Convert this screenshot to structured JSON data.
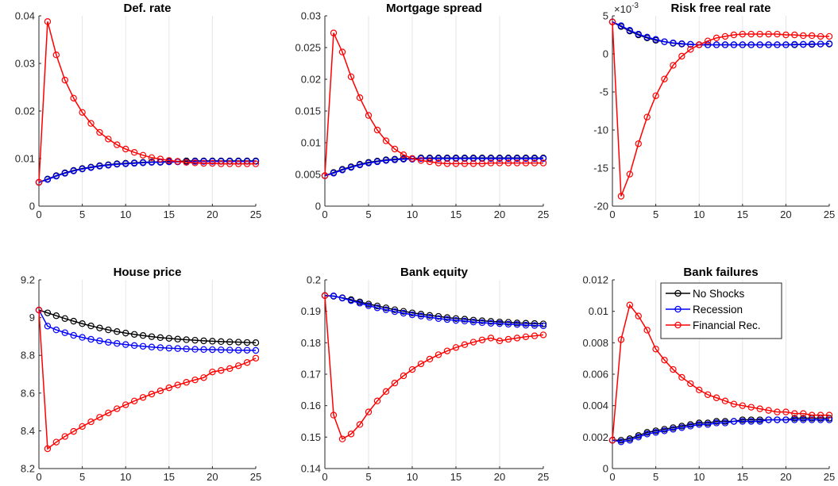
{
  "figure": {
    "legend": {
      "panel_index": 5,
      "placement": "top-right",
      "entries": [
        {
          "label": "No Shocks",
          "color": "#000000"
        },
        {
          "label": "Recession",
          "color": "#0000ff"
        },
        {
          "label": "Financial Rec.",
          "color": "#ff0000"
        }
      ]
    }
  },
  "chart_data": [
    {
      "type": "line",
      "title": "Def. rate",
      "xlabel": "",
      "ylabel": "",
      "xlim": [
        0,
        25
      ],
      "ylim": [
        0,
        0.04
      ],
      "xticks": [
        0,
        5,
        10,
        15,
        20,
        25
      ],
      "xtick_labels": [
        "0",
        "5",
        "10",
        "15",
        "20",
        "25"
      ],
      "yticks": [
        0,
        0.01,
        0.02,
        0.03,
        0.04
      ],
      "ytick_labels": [
        "0",
        "0.01",
        "0.02",
        "0.03",
        "0.04"
      ],
      "exponent_label": "",
      "grid": "vertical",
      "x": [
        0,
        1,
        2,
        3,
        4,
        5,
        6,
        7,
        8,
        9,
        10,
        11,
        12,
        13,
        14,
        15,
        16,
        17,
        18,
        19,
        20,
        21,
        22,
        23,
        24,
        25
      ],
      "series": [
        {
          "name": "No Shocks",
          "color": "#000000",
          "values": [
            0.005,
            0.0057,
            0.0064,
            0.007,
            0.0075,
            0.0079,
            0.0082,
            0.0085,
            0.0087,
            0.0089,
            0.009,
            0.0091,
            0.0092,
            0.0093,
            0.0093,
            0.0094,
            0.0094,
            0.0095,
            0.0095,
            0.0095,
            0.0095,
            0.0095,
            0.0095,
            0.0095,
            0.0095,
            0.0095
          ]
        },
        {
          "name": "Recession",
          "color": "#0000ff",
          "values": [
            0.005,
            0.0056,
            0.0063,
            0.0069,
            0.0074,
            0.0078,
            0.0081,
            0.0084,
            0.0086,
            0.0088,
            0.0089,
            0.009,
            0.0091,
            0.0092,
            0.0092,
            0.0093,
            0.0093,
            0.0093,
            0.0094,
            0.0094,
            0.0094,
            0.0094,
            0.0094,
            0.0094,
            0.0094,
            0.0094
          ]
        },
        {
          "name": "Financial Rec.",
          "color": "#ff0000",
          "values": [
            0.005,
            0.0388,
            0.0318,
            0.0265,
            0.0227,
            0.0197,
            0.0174,
            0.0155,
            0.0141,
            0.0129,
            0.012,
            0.0113,
            0.0107,
            0.0102,
            0.0099,
            0.0096,
            0.0094,
            0.0092,
            0.0091,
            0.009,
            0.009,
            0.0089,
            0.0089,
            0.0089,
            0.0089,
            0.0089
          ]
        }
      ]
    },
    {
      "type": "line",
      "title": "Mortgage spread",
      "xlabel": "",
      "ylabel": "",
      "xlim": [
        0,
        25
      ],
      "ylim": [
        0,
        0.03
      ],
      "xticks": [
        0,
        5,
        10,
        15,
        20,
        25
      ],
      "xtick_labels": [
        "0",
        "5",
        "10",
        "15",
        "20",
        "25"
      ],
      "yticks": [
        0,
        0.005,
        0.01,
        0.015,
        0.02,
        0.025,
        0.03
      ],
      "ytick_labels": [
        "0",
        "0.005",
        "0.01",
        "0.015",
        "0.02",
        "0.025",
        "0.03"
      ],
      "exponent_label": "",
      "grid": "vertical",
      "x": [
        0,
        1,
        2,
        3,
        4,
        5,
        6,
        7,
        8,
        9,
        10,
        11,
        12,
        13,
        14,
        15,
        16,
        17,
        18,
        19,
        20,
        21,
        22,
        23,
        24,
        25
      ],
      "series": [
        {
          "name": "No Shocks",
          "color": "#000000",
          "values": [
            0.0048,
            0.0053,
            0.0058,
            0.0062,
            0.0066,
            0.0069,
            0.0071,
            0.0073,
            0.0074,
            0.0075,
            0.0075,
            0.0076,
            0.0076,
            0.0076,
            0.0076,
            0.0076,
            0.0076,
            0.0076,
            0.0076,
            0.0076,
            0.0076,
            0.0076,
            0.0076,
            0.0076,
            0.0076,
            0.0076
          ]
        },
        {
          "name": "Recession",
          "color": "#0000ff",
          "values": [
            0.0048,
            0.0052,
            0.0057,
            0.0061,
            0.0065,
            0.0068,
            0.007,
            0.0072,
            0.0073,
            0.0074,
            0.0074,
            0.0075,
            0.0075,
            0.0075,
            0.0075,
            0.0075,
            0.0075,
            0.0075,
            0.0075,
            0.0075,
            0.0075,
            0.0075,
            0.0075,
            0.0075,
            0.0075,
            0.0075
          ]
        },
        {
          "name": "Financial Rec.",
          "color": "#ff0000",
          "values": [
            0.0048,
            0.0273,
            0.0243,
            0.0204,
            0.0171,
            0.0143,
            0.012,
            0.0103,
            0.009,
            0.0081,
            0.0075,
            0.0072,
            0.007,
            0.0068,
            0.0067,
            0.0067,
            0.0067,
            0.0067,
            0.0067,
            0.0068,
            0.0068,
            0.0068,
            0.0068,
            0.0068,
            0.0068,
            0.0068
          ]
        }
      ]
    },
    {
      "type": "line",
      "title": "Risk free real rate",
      "xlabel": "",
      "ylabel": "",
      "xlim": [
        0,
        25
      ],
      "ylim": [
        -20,
        5
      ],
      "xticks": [
        0,
        5,
        10,
        15,
        20,
        25
      ],
      "xtick_labels": [
        "0",
        "5",
        "10",
        "15",
        "20",
        "25"
      ],
      "yticks": [
        -20,
        -15,
        -10,
        -5,
        0,
        5
      ],
      "ytick_labels": [
        "-20",
        "-15",
        "-10",
        "-5",
        "0",
        "5"
      ],
      "exponent_label": "×10",
      "exponent_power": "-3",
      "grid": "vertical",
      "x": [
        0,
        1,
        2,
        3,
        4,
        5,
        6,
        7,
        8,
        9,
        10,
        11,
        12,
        13,
        14,
        15,
        16,
        17,
        18,
        19,
        20,
        21,
        22,
        23,
        24,
        25
      ],
      "series": [
        {
          "name": "No Shocks",
          "color": "#000000",
          "values": [
            4.2,
            3.6,
            3.0,
            2.5,
            2.1,
            1.8,
            1.6,
            1.4,
            1.3,
            1.25,
            1.2,
            1.2,
            1.2,
            1.2,
            1.2,
            1.2,
            1.2,
            1.2,
            1.2,
            1.2,
            1.2,
            1.2,
            1.25,
            1.25,
            1.3,
            1.3
          ]
        },
        {
          "name": "Recession",
          "color": "#0000ff",
          "values": [
            4.2,
            3.7,
            3.1,
            2.6,
            2.2,
            1.9,
            1.6,
            1.45,
            1.35,
            1.25,
            1.2,
            1.2,
            1.2,
            1.2,
            1.2,
            1.2,
            1.2,
            1.2,
            1.2,
            1.2,
            1.2,
            1.25,
            1.25,
            1.3,
            1.3,
            1.35
          ]
        },
        {
          "name": "Financial Rec.",
          "color": "#ff0000",
          "values": [
            4.2,
            -18.7,
            -15.8,
            -11.8,
            -8.3,
            -5.5,
            -3.3,
            -1.5,
            -0.3,
            0.6,
            1.2,
            1.7,
            2.1,
            2.3,
            2.5,
            2.6,
            2.6,
            2.6,
            2.6,
            2.6,
            2.5,
            2.5,
            2.4,
            2.4,
            2.3,
            2.3
          ]
        }
      ]
    },
    {
      "type": "line",
      "title": "House price",
      "xlabel": "",
      "ylabel": "",
      "xlim": [
        0,
        25
      ],
      "ylim": [
        8.2,
        9.2
      ],
      "xticks": [
        0,
        5,
        10,
        15,
        20,
        25
      ],
      "xtick_labels": [
        "0",
        "5",
        "10",
        "15",
        "20",
        "25"
      ],
      "yticks": [
        8.2,
        8.4,
        8.6,
        8.8,
        9,
        9.2
      ],
      "ytick_labels": [
        "8.2",
        "8.4",
        "8.6",
        "8.8",
        "9",
        "9.2"
      ],
      "exponent_label": "",
      "grid": "vertical",
      "x": [
        0,
        1,
        2,
        3,
        4,
        5,
        6,
        7,
        8,
        9,
        10,
        11,
        12,
        13,
        14,
        15,
        16,
        17,
        18,
        19,
        20,
        21,
        22,
        23,
        24,
        25
      ],
      "series": [
        {
          "name": "No Shocks",
          "color": "#000000",
          "values": [
            9.04,
            9.025,
            9.01,
            8.995,
            8.981,
            8.968,
            8.956,
            8.945,
            8.935,
            8.926,
            8.918,
            8.911,
            8.905,
            8.899,
            8.894,
            8.89,
            8.886,
            8.883,
            8.88,
            8.877,
            8.875,
            8.873,
            8.871,
            8.87,
            8.868,
            8.867
          ]
        },
        {
          "name": "Recession",
          "color": "#0000ff",
          "values": [
            9.04,
            8.955,
            8.935,
            8.92,
            8.906,
            8.895,
            8.885,
            8.877,
            8.869,
            8.863,
            8.857,
            8.852,
            8.848,
            8.844,
            8.841,
            8.838,
            8.836,
            8.834,
            8.832,
            8.831,
            8.83,
            8.829,
            8.828,
            8.827,
            8.827,
            8.826
          ]
        },
        {
          "name": "Financial Rec.",
          "color": "#ff0000",
          "values": [
            9.04,
            8.305,
            8.34,
            8.37,
            8.397,
            8.423,
            8.448,
            8.472,
            8.495,
            8.517,
            8.538,
            8.558,
            8.577,
            8.595,
            8.612,
            8.628,
            8.643,
            8.657,
            8.67,
            8.682,
            8.712,
            8.72,
            8.73,
            8.745,
            8.762,
            8.785
          ]
        }
      ]
    },
    {
      "type": "line",
      "title": "Bank equity",
      "xlabel": "",
      "ylabel": "",
      "xlim": [
        0,
        25
      ],
      "ylim": [
        0.14,
        0.2
      ],
      "xticks": [
        0,
        5,
        10,
        15,
        20,
        25
      ],
      "xtick_labels": [
        "0",
        "5",
        "10",
        "15",
        "20",
        "25"
      ],
      "yticks": [
        0.14,
        0.15,
        0.16,
        0.17,
        0.18,
        0.19,
        0.2
      ],
      "ytick_labels": [
        "0.14",
        "0.15",
        "0.16",
        "0.17",
        "0.18",
        "0.19",
        "0.2"
      ],
      "exponent_label": "",
      "grid": "vertical",
      "x": [
        0,
        1,
        2,
        3,
        4,
        5,
        6,
        7,
        8,
        9,
        10,
        11,
        12,
        13,
        14,
        15,
        16,
        17,
        18,
        19,
        20,
        21,
        22,
        23,
        24,
        25
      ],
      "series": [
        {
          "name": "No Shocks",
          "color": "#000000",
          "values": [
            0.195,
            0.1948,
            0.1943,
            0.1937,
            0.193,
            0.1923,
            0.1917,
            0.1911,
            0.1905,
            0.19,
            0.1895,
            0.1891,
            0.1887,
            0.1884,
            0.188,
            0.1877,
            0.1875,
            0.1872,
            0.187,
            0.1868,
            0.1866,
            0.1865,
            0.1863,
            0.1862,
            0.1861,
            0.186
          ]
        },
        {
          "name": "Recession",
          "color": "#0000ff",
          "values": [
            0.195,
            0.1949,
            0.1942,
            0.1934,
            0.1926,
            0.1918,
            0.1911,
            0.1905,
            0.1899,
            0.1894,
            0.1889,
            0.1885,
            0.1881,
            0.1877,
            0.1874,
            0.1871,
            0.1869,
            0.1866,
            0.1864,
            0.1862,
            0.1861,
            0.1859,
            0.1858,
            0.1856,
            0.1855,
            0.1854
          ]
        },
        {
          "name": "Financial Rec.",
          "color": "#ff0000",
          "values": [
            0.195,
            0.157,
            0.1494,
            0.151,
            0.154,
            0.158,
            0.1615,
            0.1645,
            0.1672,
            0.1695,
            0.1715,
            0.1733,
            0.1748,
            0.1762,
            0.1774,
            0.1785,
            0.1794,
            0.1802,
            0.1809,
            0.1815,
            0.1806,
            0.1811,
            0.1815,
            0.1819,
            0.1822,
            0.1825
          ]
        }
      ]
    },
    {
      "type": "line",
      "title": "Bank failures",
      "xlabel": "",
      "ylabel": "",
      "xlim": [
        0,
        25
      ],
      "ylim": [
        0,
        0.012
      ],
      "xticks": [
        0,
        5,
        10,
        15,
        20,
        25
      ],
      "xtick_labels": [
        "0",
        "5",
        "10",
        "15",
        "20",
        "25"
      ],
      "yticks": [
        0,
        0.002,
        0.004,
        0.006,
        0.008,
        0.01,
        0.012
      ],
      "ytick_labels": [
        "0",
        "0.002",
        "0.004",
        "0.006",
        "0.008",
        "0.01",
        "0.012"
      ],
      "exponent_label": "",
      "grid": "vertical",
      "x": [
        0,
        1,
        2,
        3,
        4,
        5,
        6,
        7,
        8,
        9,
        10,
        11,
        12,
        13,
        14,
        15,
        16,
        17,
        18,
        19,
        20,
        21,
        22,
        23,
        24,
        25
      ],
      "series": [
        {
          "name": "No Shocks",
          "color": "#000000",
          "values": [
            0.0018,
            0.0018,
            0.0019,
            0.0021,
            0.0023,
            0.0024,
            0.0025,
            0.0026,
            0.0027,
            0.0028,
            0.0029,
            0.0029,
            0.003,
            0.003,
            0.003,
            0.0031,
            0.0031,
            0.0031,
            0.0031,
            0.0031,
            0.0031,
            0.0032,
            0.0032,
            0.0032,
            0.0032,
            0.0032
          ]
        },
        {
          "name": "Recession",
          "color": "#0000ff",
          "values": [
            0.0018,
            0.0017,
            0.0018,
            0.002,
            0.0022,
            0.0023,
            0.0024,
            0.0025,
            0.0026,
            0.0027,
            0.0028,
            0.0028,
            0.0029,
            0.0029,
            0.003,
            0.003,
            0.003,
            0.003,
            0.0031,
            0.0031,
            0.0031,
            0.0031,
            0.0031,
            0.0031,
            0.0031,
            0.0031
          ]
        },
        {
          "name": "Financial Rec.",
          "color": "#ff0000",
          "values": [
            0.0018,
            0.0082,
            0.0104,
            0.0097,
            0.0088,
            0.0076,
            0.0069,
            0.0063,
            0.0058,
            0.0054,
            0.005,
            0.0047,
            0.0045,
            0.0043,
            0.0041,
            0.004,
            0.0039,
            0.0038,
            0.0037,
            0.0036,
            0.0036,
            0.0035,
            0.0035,
            0.0034,
            0.0034,
            0.0034
          ]
        }
      ]
    }
  ]
}
